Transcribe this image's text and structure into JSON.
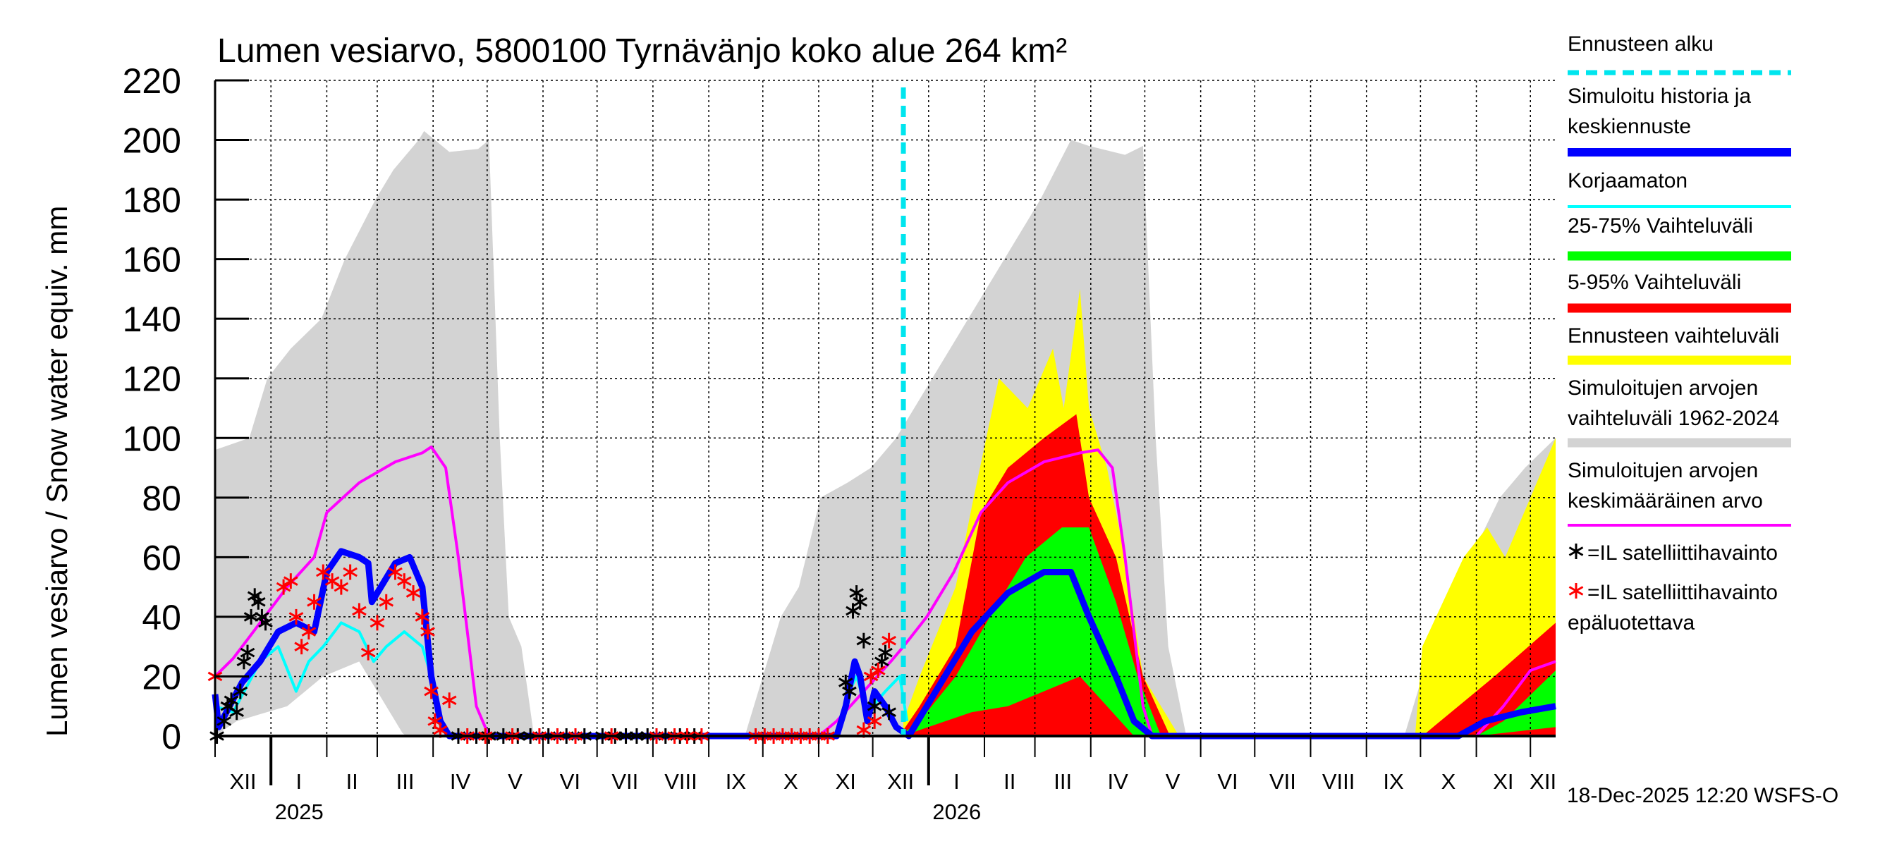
{
  "chart_data": {
    "type": "area",
    "title": "Lumen vesiarvo, 5800100 Tyrnävänjo koko alue 264 km²",
    "ylabel": "Lumen vesiarvo / Snow water equiv.    mm",
    "ylim": [
      0,
      220
    ],
    "yticks": [
      0,
      20,
      40,
      60,
      80,
      100,
      120,
      140,
      160,
      180,
      200,
      220
    ],
    "x_unit": "days since 2024-12-01",
    "xlim": [
      0,
      744
    ],
    "grid": true,
    "legend_placement": "right",
    "forecast_start_day": 382,
    "month_starts": [
      0,
      31,
      62,
      90,
      121,
      151,
      182,
      212,
      243,
      274,
      304,
      335,
      365,
      396,
      427,
      455,
      486,
      516,
      547,
      577,
      608,
      639,
      669,
      700,
      730
    ],
    "month_labels": [
      "XII",
      "I",
      "II",
      "III",
      "IV",
      "V",
      "VI",
      "VII",
      "VIII",
      "IX",
      "X",
      "XI",
      "XII",
      "I",
      "II",
      "III",
      "IV",
      "V",
      "VI",
      "VII",
      "VIII",
      "IX",
      "X",
      "XI",
      "XII"
    ],
    "year_labels": [
      {
        "label": "2025",
        "day": 31
      },
      {
        "label": "2026",
        "day": 396
      }
    ],
    "timestamp": "18-Dec-2025 12:20 WSFS-O",
    "colors": {
      "forecast_start": "#00e5ee",
      "median": "#0000ff",
      "uncorrected": "#00ffff",
      "p25_75": "#00ff00",
      "p5_95": "#ff0000",
      "forecast_range": "#ffff00",
      "hist_range": "#d3d3d3",
      "hist_mean": "#ff00ff",
      "obs": "#000000",
      "obs_unreliable": "#ff0000"
    },
    "legend": [
      {
        "label": [
          "Ennusteen alku"
        ],
        "key": "forecast_start"
      },
      {
        "label": [
          "Simuloitu historia ja",
          "keskiennuste"
        ],
        "key": "median"
      },
      {
        "label": [
          "Korjaamaton"
        ],
        "key": "uncorrected"
      },
      {
        "label": [
          "25-75% Vaihteluväli"
        ],
        "key": "p25_75"
      },
      {
        "label": [
          "5-95% Vaihteluväli"
        ],
        "key": "p5_95"
      },
      {
        "label": [
          "Ennusteen vaihteluväli"
        ],
        "key": "forecast_range"
      },
      {
        "label": [
          "Simuloitujen arvojen",
          "vaihteluväli 1962-2024"
        ],
        "key": "hist_range"
      },
      {
        "label": [
          "Simuloitujen arvojen",
          "keskimääräinen arvo"
        ],
        "key": "hist_mean"
      },
      {
        "label": [
          "=IL satelliittihavainto"
        ],
        "key": "obs"
      },
      {
        "label": [
          "=IL satelliittihavainto",
          "epäluotettava"
        ],
        "key": "obs_unreliable"
      }
    ],
    "series": {
      "hist_range_upper": [
        [
          0,
          96
        ],
        [
          19,
          100
        ],
        [
          29,
          120
        ],
        [
          42,
          130
        ],
        [
          59,
          140
        ],
        [
          72,
          160
        ],
        [
          89,
          180
        ],
        [
          99,
          190
        ],
        [
          113,
          200
        ],
        [
          116,
          203
        ],
        [
          130,
          196
        ],
        [
          146,
          197
        ],
        [
          152,
          200
        ],
        [
          158,
          100
        ],
        [
          163,
          40
        ],
        [
          170,
          30
        ],
        [
          177,
          0
        ],
        [
          294,
          0
        ],
        [
          304,
          20
        ],
        [
          314,
          40
        ],
        [
          324,
          50
        ],
        [
          336,
          80
        ],
        [
          351,
          85
        ],
        [
          364,
          90
        ],
        [
          378,
          100
        ],
        [
          398,
          120
        ],
        [
          418,
          140
        ],
        [
          438,
          160
        ],
        [
          458,
          180
        ],
        [
          475,
          200
        ],
        [
          485,
          198
        ],
        [
          505,
          195
        ],
        [
          515,
          198
        ],
        [
          522,
          100
        ],
        [
          529,
          30
        ],
        [
          539,
          0
        ],
        [
          660,
          0
        ],
        [
          670,
          20
        ],
        [
          676,
          30
        ],
        [
          697,
          60
        ],
        [
          713,
          80
        ],
        [
          727,
          90
        ],
        [
          744,
          100
        ]
      ],
      "hist_range_lower": [
        [
          0,
          0
        ],
        [
          12,
          5
        ],
        [
          40,
          10
        ],
        [
          60,
          20
        ],
        [
          80,
          25
        ],
        [
          95,
          10
        ],
        [
          105,
          0
        ],
        [
          744,
          0
        ]
      ],
      "forecast_range_upper": [
        [
          382,
          5
        ],
        [
          391,
          20
        ],
        [
          411,
          50
        ],
        [
          421,
          80
        ],
        [
          435,
          120
        ],
        [
          451,
          110
        ],
        [
          465,
          130
        ],
        [
          471,
          110
        ],
        [
          480,
          150
        ],
        [
          485,
          110
        ],
        [
          495,
          90
        ],
        [
          505,
          60
        ],
        [
          515,
          20
        ],
        [
          535,
          0
        ],
        [
          666,
          0
        ],
        [
          670,
          30
        ],
        [
          693,
          60
        ],
        [
          706,
          70
        ],
        [
          716,
          60
        ],
        [
          744,
          100
        ]
      ],
      "p5_95_upper": [
        [
          382,
          2
        ],
        [
          391,
          10
        ],
        [
          411,
          30
        ],
        [
          425,
          75
        ],
        [
          440,
          90
        ],
        [
          460,
          100
        ],
        [
          478,
          108
        ],
        [
          485,
          80
        ],
        [
          500,
          60
        ],
        [
          515,
          20
        ],
        [
          530,
          0
        ],
        [
          670,
          0
        ],
        [
          690,
          10
        ],
        [
          710,
          20
        ],
        [
          744,
          38
        ]
      ],
      "p25_75_upper": [
        [
          382,
          1
        ],
        [
          391,
          5
        ],
        [
          411,
          20
        ],
        [
          430,
          40
        ],
        [
          450,
          60
        ],
        [
          470,
          70
        ],
        [
          485,
          70
        ],
        [
          500,
          45
        ],
        [
          512,
          20
        ],
        [
          525,
          0
        ],
        [
          700,
          0
        ],
        [
          715,
          5
        ],
        [
          744,
          22
        ]
      ],
      "p25_75_lower": [
        [
          382,
          0
        ],
        [
          391,
          2
        ],
        [
          420,
          8
        ],
        [
          440,
          10
        ],
        [
          460,
          15
        ],
        [
          480,
          20
        ],
        [
          495,
          10
        ],
        [
          510,
          0
        ],
        [
          700,
          0
        ],
        [
          744,
          3
        ]
      ],
      "median": [
        [
          0,
          14
        ],
        [
          2,
          3
        ],
        [
          8,
          10
        ],
        [
          15,
          18
        ],
        [
          25,
          25
        ],
        [
          35,
          35
        ],
        [
          45,
          38
        ],
        [
          55,
          35
        ],
        [
          62,
          55
        ],
        [
          70,
          62
        ],
        [
          80,
          60
        ],
        [
          85,
          58
        ],
        [
          87,
          45
        ],
        [
          92,
          50
        ],
        [
          100,
          58
        ],
        [
          108,
          60
        ],
        [
          115,
          50
        ],
        [
          120,
          20
        ],
        [
          125,
          5
        ],
        [
          130,
          0
        ],
        [
          345,
          0
        ],
        [
          350,
          10
        ],
        [
          355,
          25
        ],
        [
          358,
          20
        ],
        [
          362,
          5
        ],
        [
          366,
          15
        ],
        [
          372,
          10
        ],
        [
          378,
          3
        ],
        [
          385,
          0
        ],
        [
          390,
          5
        ],
        [
          400,
          15
        ],
        [
          410,
          25
        ],
        [
          420,
          35
        ],
        [
          440,
          48
        ],
        [
          460,
          55
        ],
        [
          475,
          55
        ],
        [
          485,
          40
        ],
        [
          500,
          20
        ],
        [
          510,
          5
        ],
        [
          520,
          0
        ],
        [
          690,
          0
        ],
        [
          705,
          5
        ],
        [
          725,
          8
        ],
        [
          744,
          10
        ]
      ],
      "uncorrected": [
        [
          0,
          10
        ],
        [
          10,
          8
        ],
        [
          25,
          25
        ],
        [
          35,
          30
        ],
        [
          45,
          15
        ],
        [
          52,
          25
        ],
        [
          60,
          30
        ],
        [
          70,
          38
        ],
        [
          80,
          35
        ],
        [
          88,
          25
        ],
        [
          95,
          30
        ],
        [
          105,
          35
        ],
        [
          115,
          30
        ],
        [
          120,
          20
        ],
        [
          125,
          5
        ],
        [
          130,
          0
        ],
        [
          345,
          0
        ],
        [
          352,
          15
        ],
        [
          356,
          20
        ],
        [
          362,
          8
        ],
        [
          372,
          15
        ],
        [
          380,
          20
        ],
        [
          384,
          5
        ]
      ],
      "hist_mean": [
        [
          0,
          20
        ],
        [
          10,
          26
        ],
        [
          25,
          38
        ],
        [
          40,
          50
        ],
        [
          55,
          60
        ],
        [
          62,
          75
        ],
        [
          80,
          85
        ],
        [
          100,
          92
        ],
        [
          115,
          95
        ],
        [
          120,
          97
        ],
        [
          128,
          90
        ],
        [
          135,
          60
        ],
        [
          145,
          10
        ],
        [
          152,
          0
        ],
        [
          335,
          0
        ],
        [
          345,
          5
        ],
        [
          360,
          15
        ],
        [
          375,
          25
        ],
        [
          382,
          30
        ],
        [
          395,
          40
        ],
        [
          410,
          55
        ],
        [
          425,
          75
        ],
        [
          440,
          85
        ],
        [
          460,
          92
        ],
        [
          480,
          95
        ],
        [
          490,
          96
        ],
        [
          498,
          90
        ],
        [
          505,
          60
        ],
        [
          515,
          10
        ],
        [
          520,
          0
        ],
        [
          700,
          0
        ],
        [
          715,
          10
        ],
        [
          730,
          22
        ],
        [
          744,
          25
        ]
      ],
      "obs": [
        [
          1,
          0
        ],
        [
          5,
          5
        ],
        [
          7,
          10
        ],
        [
          9,
          12
        ],
        [
          12,
          8
        ],
        [
          14,
          15
        ],
        [
          16,
          25
        ],
        [
          18,
          28
        ],
        [
          20,
          40
        ],
        [
          22,
          47
        ],
        [
          24,
          45
        ],
        [
          26,
          40
        ],
        [
          28,
          38
        ],
        [
          135,
          0
        ],
        [
          145,
          0
        ],
        [
          152,
          0
        ],
        [
          160,
          0
        ],
        [
          168,
          0
        ],
        [
          175,
          0
        ],
        [
          185,
          0
        ],
        [
          195,
          0
        ],
        [
          205,
          0
        ],
        [
          215,
          0
        ],
        [
          222,
          0
        ],
        [
          228,
          0
        ],
        [
          234,
          0
        ],
        [
          240,
          0
        ],
        [
          250,
          0
        ],
        [
          258,
          0
        ],
        [
          266,
          0
        ],
        [
          350,
          18
        ],
        [
          352,
          15
        ],
        [
          354,
          42
        ],
        [
          356,
          48
        ],
        [
          358,
          45
        ],
        [
          360,
          32
        ],
        [
          366,
          10
        ],
        [
          370,
          25
        ],
        [
          372,
          28
        ],
        [
          374,
          8
        ]
      ],
      "obs_unreliable": [
        [
          0,
          20
        ],
        [
          38,
          50
        ],
        [
          42,
          52
        ],
        [
          45,
          40
        ],
        [
          48,
          30
        ],
        [
          52,
          35
        ],
        [
          55,
          45
        ],
        [
          60,
          55
        ],
        [
          65,
          52
        ],
        [
          70,
          50
        ],
        [
          75,
          55
        ],
        [
          80,
          42
        ],
        [
          85,
          28
        ],
        [
          90,
          38
        ],
        [
          95,
          45
        ],
        [
          100,
          55
        ],
        [
          105,
          52
        ],
        [
          110,
          48
        ],
        [
          115,
          40
        ],
        [
          118,
          35
        ],
        [
          120,
          15
        ],
        [
          122,
          5
        ],
        [
          125,
          2
        ],
        [
          130,
          12
        ],
        [
          140,
          0
        ],
        [
          150,
          0
        ],
        [
          165,
          0
        ],
        [
          180,
          0
        ],
        [
          190,
          0
        ],
        [
          200,
          0
        ],
        [
          220,
          0
        ],
        [
          245,
          0
        ],
        [
          255,
          0
        ],
        [
          262,
          0
        ],
        [
          270,
          0
        ],
        [
          300,
          0
        ],
        [
          305,
          0
        ],
        [
          310,
          0
        ],
        [
          315,
          0
        ],
        [
          320,
          0
        ],
        [
          325,
          0
        ],
        [
          330,
          0
        ],
        [
          335,
          0
        ],
        [
          340,
          0
        ],
        [
          360,
          2
        ],
        [
          364,
          20
        ],
        [
          366,
          5
        ],
        [
          368,
          22
        ],
        [
          374,
          32
        ]
      ]
    }
  }
}
